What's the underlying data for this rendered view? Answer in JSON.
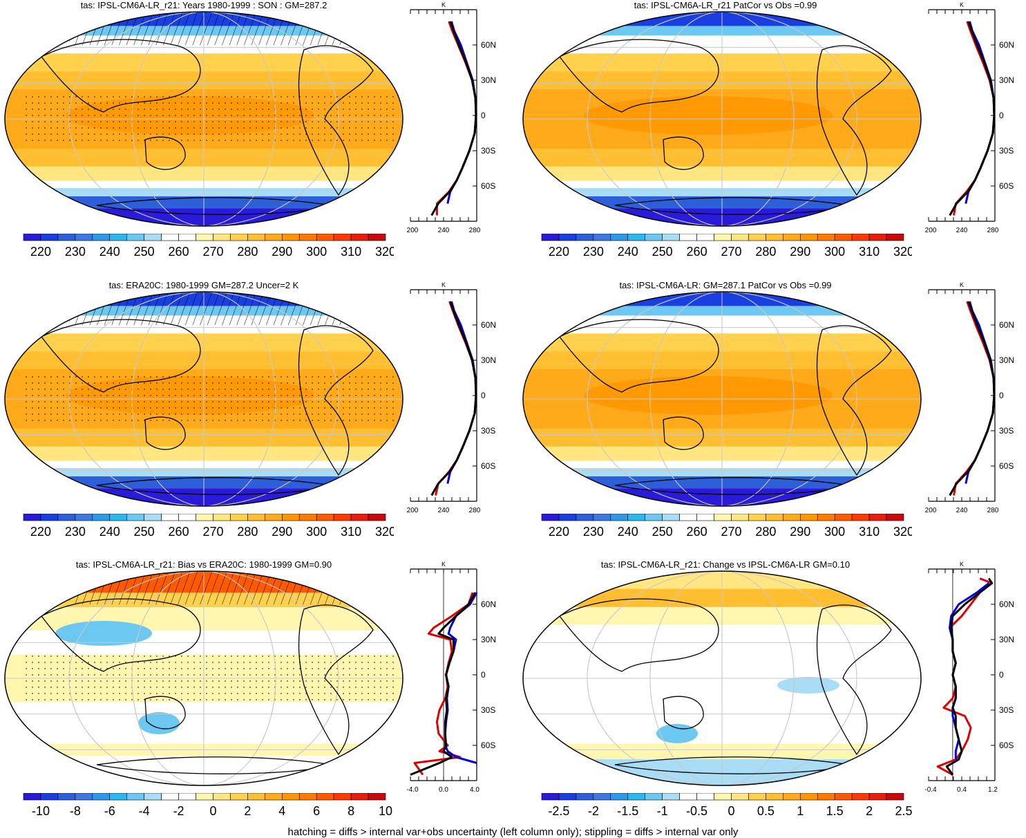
{
  "footnote": "hatching = diffs > internal var+obs uncertainty (left column only); stippling = diffs > internal var only",
  "colors": {
    "levels_abs": [
      "#2a1bd8",
      "#1a3fe0",
      "#2c5fd8",
      "#3f78e0",
      "#2d9ae8",
      "#2cb8ee",
      "#6cc8f0",
      "#a8ddf5",
      "#ffffff",
      "#ffffff",
      "#fff6b0",
      "#ffe680",
      "#ffd14d",
      "#ffbf30",
      "#ffaa1a",
      "#ff9600",
      "#ff7a00",
      "#ff5a00",
      "#ff3a00",
      "#e81d0c",
      "#c80a0a"
    ],
    "levels_diff": [
      "#2a1bd8",
      "#1a3fe0",
      "#2c5fd8",
      "#3f78e0",
      "#2d9ae8",
      "#2cb8ee",
      "#6cc8f0",
      "#a8ddf5",
      "#ffffff",
      "#ffffff",
      "#fff6b0",
      "#ffe680",
      "#ffd14d",
      "#ffbf30",
      "#ffaa1a",
      "#ff9600",
      "#ff7a00",
      "#ff5a00",
      "#ff3a00",
      "#e81d0c",
      "#c80a0a"
    ],
    "gridline": "#c8c8c8",
    "profile_red": "#e00000",
    "profile_blue": "#0000e0",
    "profile_black": "#000000"
  },
  "lat_labels": [
    "60N",
    "30N",
    "0",
    "30S",
    "60S"
  ],
  "lat_values": [
    60,
    30,
    0,
    -30,
    -60
  ],
  "panels": [
    {
      "title": "tas: IPSL-CM6A-LR_r21: Years 1980-1999 : SON : GM=287.2",
      "map_style": "absolute",
      "hatched": true,
      "colorbar_labels": [
        "220",
        "230",
        "240",
        "250",
        "260",
        "270",
        "280",
        "290",
        "300",
        "310",
        "320"
      ],
      "chart_data": {
        "type": "line",
        "title": "",
        "xlabel": "K",
        "x_ticks": [
          "200",
          "240",
          "280"
        ],
        "xlim": [
          200,
          300
        ],
        "ylim": [
          -90,
          90
        ],
        "series": [
          {
            "color": "red",
            "lat": [
              -85,
              -75,
              -65,
              -55,
              -45,
              -30,
              -15,
              0,
              15,
              30,
              45,
              60,
              72,
              80
            ],
            "values": [
              240,
              240,
              258,
              270,
              278,
              289,
              297,
              299,
              298,
              293,
              283,
              272,
              263,
              258
            ]
          },
          {
            "color": "blue",
            "lat": [
              -75,
              -65,
              -55,
              -45,
              -30,
              -15,
              0,
              15,
              30,
              45,
              60,
              72,
              80
            ],
            "values": [
              256,
              260,
              270,
              278,
              289,
              297,
              299,
              298,
              294,
              285,
              276,
              266,
              262
            ]
          },
          {
            "color": "black",
            "lat": [
              -85,
              -75,
              -65,
              -55,
              -45,
              -30,
              -15,
              0,
              15,
              30,
              45,
              60,
              72,
              80
            ],
            "values": [
              232,
              242,
              259,
              270,
              278,
              289,
              297,
              299,
              298,
              293,
              284,
              273,
              265,
              260
            ]
          }
        ]
      }
    },
    {
      "title": "tas: IPSL-CM6A-LR_r21 PatCor vs Obs =0.99",
      "map_style": "absolute",
      "hatched": false,
      "colorbar_labels": [
        "220",
        "230",
        "240",
        "250",
        "260",
        "270",
        "280",
        "290",
        "300",
        "310",
        "320"
      ],
      "chart_data": {
        "type": "line",
        "title": "",
        "xlabel": "K",
        "x_ticks": [
          "200",
          "240",
          "280"
        ],
        "xlim": [
          200,
          300
        ],
        "ylim": [
          -90,
          90
        ],
        "series": [
          {
            "color": "red",
            "lat": [
              -85,
              -75,
              -65,
              -55,
              -45,
              -30,
              -15,
              0,
              15,
              30,
              45,
              60,
              72,
              80
            ],
            "values": [
              238,
              241,
              257,
              270,
              278,
              289,
              297,
              299,
              298,
              292,
              282,
              271,
              263,
              258
            ]
          },
          {
            "color": "blue",
            "lat": [
              -75,
              -65,
              -55,
              -45,
              -30,
              -15,
              0,
              15,
              30,
              45,
              60,
              72,
              80
            ],
            "values": [
              256,
              260,
              270,
              278,
              289,
              297,
              299,
              298,
              294,
              285,
              276,
              266,
              262
            ]
          },
          {
            "color": "black",
            "lat": [
              -85,
              -75,
              -65,
              -55,
              -45,
              -30,
              -15,
              0,
              15,
              30,
              45,
              60,
              72,
              80
            ],
            "values": [
              232,
              242,
              259,
              270,
              278,
              289,
              297,
              299,
              298,
              293,
              284,
              273,
              265,
              260
            ]
          }
        ]
      }
    },
    {
      "title": "tas: ERA20C: 1980-1999 GM=287.2 Uncer=2 K",
      "map_style": "absolute",
      "hatched": true,
      "colorbar_labels": [
        "220",
        "230",
        "240",
        "250",
        "260",
        "270",
        "280",
        "290",
        "300",
        "310",
        "320"
      ],
      "chart_data": {
        "type": "line",
        "title": "",
        "xlabel": "K",
        "x_ticks": [
          "200",
          "240",
          "280"
        ],
        "xlim": [
          200,
          300
        ],
        "ylim": [
          -90,
          90
        ],
        "series": [
          {
            "color": "red",
            "lat": [
              -85,
              -75,
              -65,
              -55,
              -45,
              -30,
              -15,
              0,
              15,
              30,
              45,
              60,
              72,
              80
            ],
            "values": [
              238,
              242,
              258,
              270,
              278,
              289,
              297,
              299,
              298,
              293,
              283,
              272,
              264,
              259
            ]
          },
          {
            "color": "blue",
            "lat": [
              -75,
              -65,
              -55,
              -45,
              -30,
              -15,
              0,
              15,
              30,
              45,
              60,
              72,
              80
            ],
            "values": [
              256,
              260,
              270,
              278,
              289,
              297,
              299,
              298,
              294,
              285,
              276,
              266,
              262
            ]
          },
          {
            "color": "black",
            "lat": [
              -85,
              -75,
              -65,
              -55,
              -45,
              -30,
              -15,
              0,
              15,
              30,
              45,
              60,
              72,
              80
            ],
            "values": [
              232,
              242,
              259,
              270,
              278,
              289,
              297,
              299,
              298,
              293,
              284,
              273,
              265,
              260
            ]
          }
        ]
      }
    },
    {
      "title": "tas: IPSL-CM6A-LR: GM=287.1 PatCor vs Obs =0.99",
      "map_style": "absolute",
      "hatched": false,
      "colorbar_labels": [
        "220",
        "230",
        "240",
        "250",
        "260",
        "270",
        "280",
        "290",
        "300",
        "310",
        "320"
      ],
      "chart_data": {
        "type": "line",
        "title": "",
        "xlabel": "K",
        "x_ticks": [
          "200",
          "240",
          "280"
        ],
        "xlim": [
          200,
          300
        ],
        "ylim": [
          -90,
          90
        ],
        "series": [
          {
            "color": "red",
            "lat": [
              -85,
              -75,
              -65,
              -55,
              -45,
              -30,
              -15,
              0,
              15,
              30,
              45,
              60,
              72,
              80
            ],
            "values": [
              238,
              241,
              257,
              270,
              278,
              289,
              297,
              299,
              298,
              292,
              282,
              271,
              263,
              258
            ]
          },
          {
            "color": "blue",
            "lat": [
              -75,
              -65,
              -55,
              -45,
              -30,
              -15,
              0,
              15,
              30,
              45,
              60,
              72,
              80
            ],
            "values": [
              256,
              260,
              270,
              278,
              289,
              297,
              299,
              298,
              294,
              285,
              276,
              266,
              262
            ]
          },
          {
            "color": "black",
            "lat": [
              -85,
              -75,
              -65,
              -55,
              -45,
              -30,
              -15,
              0,
              15,
              30,
              45,
              60,
              72,
              80
            ],
            "values": [
              232,
              242,
              259,
              270,
              278,
              289,
              297,
              299,
              298,
              293,
              284,
              273,
              265,
              260
            ]
          }
        ]
      }
    },
    {
      "title": "tas: IPSL-CM6A-LR_r21: Bias vs ERA20C: 1980-1999  GM=0.90",
      "map_style": "bias",
      "hatched": true,
      "colorbar_labels": [
        "-10",
        "-8",
        "-6",
        "-4",
        "-2",
        "0",
        "2",
        "4",
        "6",
        "8",
        "10"
      ],
      "chart_data": {
        "type": "line",
        "title": "",
        "xlabel": "K",
        "x_ticks": [
          "-4.0",
          "0.0",
          "4.0"
        ],
        "xlim": [
          -4,
          4
        ],
        "ylim": [
          -90,
          90
        ],
        "series": [
          {
            "color": "red",
            "lat": [
              -85,
              -75,
              -70,
              -65,
              -60,
              -50,
              -40,
              -30,
              -20,
              -10,
              0,
              10,
              20,
              30,
              35,
              40,
              50,
              60,
              70
            ],
            "values": [
              -2.5,
              -3.5,
              2,
              -0.5,
              0.5,
              -0.6,
              -0.8,
              -0.5,
              0.2,
              0.5,
              0.3,
              0.6,
              1.0,
              0.8,
              -1.8,
              -1.2,
              1.0,
              3.0,
              3.5
            ]
          },
          {
            "color": "blue",
            "lat": [
              -75,
              -70,
              -65,
              -60,
              -50,
              -40,
              -30,
              -20,
              -10,
              0,
              10,
              20,
              30,
              35,
              40,
              50,
              60,
              70
            ],
            "values": [
              4.0,
              1.5,
              0.5,
              0.2,
              0.2,
              0.3,
              0.5,
              0.4,
              0.6,
              0.3,
              0.7,
              1.2,
              1.5,
              0.6,
              0.8,
              1.5,
              3.2,
              4.0
            ]
          },
          {
            "color": "black",
            "lat": [
              -85,
              -75,
              -70,
              -65,
              -60,
              -50,
              -40,
              -30,
              -20,
              -10,
              0,
              10,
              20,
              30,
              35,
              40,
              50,
              60,
              70
            ],
            "values": [
              -4.0,
              -0.5,
              1.0,
              0.0,
              0.3,
              0.2,
              0.2,
              0.4,
              0.3,
              0.6,
              0.3,
              0.7,
              1.2,
              1.2,
              -0.6,
              0.0,
              1.5,
              3.0,
              3.8
            ]
          }
        ]
      }
    },
    {
      "title": "tas: IPSL-CM6A-LR_r21: Change vs IPSL-CM6A-LR GM=0.10",
      "map_style": "change",
      "hatched": false,
      "colorbar_labels": [
        "-2.5",
        "-2",
        "-1.5",
        "-1",
        "-0.5",
        "0",
        "0.5",
        "1",
        "1.5",
        "2",
        "2.5"
      ],
      "chart_data": {
        "type": "line",
        "title": "",
        "xlabel": "K",
        "x_ticks": [
          "-0.4",
          "0.4",
          "1.2"
        ],
        "xlim": [
          -0.8,
          1.4
        ],
        "ylim": [
          -90,
          90
        ],
        "series": [
          {
            "color": "red",
            "lat": [
              -85,
              -78,
              -72,
              -65,
              -55,
              -45,
              -35,
              -28,
              -20,
              -10,
              0,
              10,
              20,
              30,
              40,
              50,
              60,
              70,
              78,
              82
            ],
            "values": [
              0.0,
              -0.5,
              0.1,
              0.3,
              0.5,
              0.6,
              0.4,
              -0.3,
              0.0,
              0.1,
              0.0,
              0.1,
              0.0,
              0.0,
              -0.1,
              0.3,
              0.6,
              0.9,
              1.3,
              0.9
            ]
          },
          {
            "color": "blue",
            "lat": [
              -72,
              -65,
              -55,
              -45,
              -35,
              -28,
              -20,
              -10,
              0,
              10,
              20,
              30,
              40,
              50,
              60,
              70,
              78
            ],
            "values": [
              0.1,
              0.1,
              0.2,
              0.1,
              0.0,
              0.0,
              0.1,
              0.1,
              0.0,
              0.1,
              0.0,
              0.0,
              -0.1,
              -0.05,
              0.2,
              0.8,
              1.2
            ]
          },
          {
            "color": "black",
            "lat": [
              -85,
              -78,
              -72,
              -65,
              -55,
              -45,
              -35,
              -28,
              -20,
              -10,
              0,
              10,
              20,
              30,
              40,
              50,
              60,
              70,
              78,
              82
            ],
            "values": [
              0.0,
              -0.2,
              0.2,
              0.3,
              0.2,
              0.1,
              0.1,
              0.0,
              0.1,
              0.1,
              0.0,
              0.1,
              0.0,
              0.0,
              -0.05,
              0.0,
              0.4,
              0.9,
              1.3,
              1.2
            ]
          }
        ]
      }
    }
  ]
}
